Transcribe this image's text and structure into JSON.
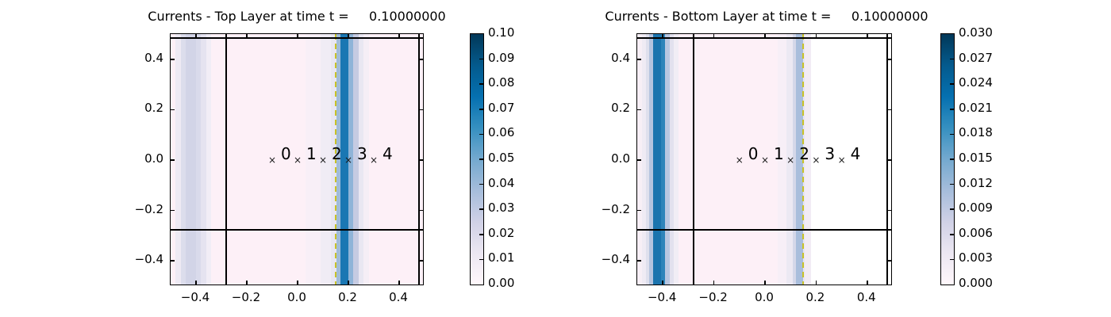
{
  "figure": {
    "background": "#ffffff"
  },
  "chart_data": [
    {
      "type": "heatmap",
      "title": "Currents - Top Layer at time t =     0.10000000",
      "xlabel": "",
      "ylabel": "",
      "xlim": [
        -0.5,
        0.5
      ],
      "ylim": [
        -0.5,
        0.5
      ],
      "xtick_values": [
        -0.4,
        -0.2,
        0.0,
        0.2,
        0.4
      ],
      "xtick_labels": [
        "−0.4",
        "−0.2",
        "0.0",
        "0.2",
        "0.4"
      ],
      "ytick_values": [
        0.4,
        0.2,
        0.0,
        -0.2,
        -0.4
      ],
      "ytick_labels": [
        "0.4",
        "0.2",
        "0.0",
        "−0.2",
        "−0.4"
      ],
      "background_color": "#fdf0f7",
      "colormap": "PuBu",
      "bands": [
        {
          "x0": -0.5,
          "x1": -0.48,
          "color": "#fdf0f7"
        },
        {
          "x0": -0.48,
          "x1": -0.46,
          "color": "#eeeaf4"
        },
        {
          "x0": -0.46,
          "x1": -0.44,
          "color": "#dcddec"
        },
        {
          "x0": -0.44,
          "x1": -0.4,
          "color": "#d2d4e7"
        },
        {
          "x0": -0.4,
          "x1": -0.38,
          "color": "#d9daeb"
        },
        {
          "x0": -0.38,
          "x1": -0.36,
          "color": "#e5e3f0"
        },
        {
          "x0": -0.36,
          "x1": -0.34,
          "color": "#f1edf6"
        },
        {
          "x0": -0.34,
          "x1": 0.03,
          "color": "#fdf0f7"
        },
        {
          "x0": 0.03,
          "x1": 0.09,
          "color": "#f8eff7"
        },
        {
          "x0": 0.09,
          "x1": 0.13,
          "color": "#f0ecf5"
        },
        {
          "x0": 0.13,
          "x1": 0.153,
          "color": "#e8e6f1"
        },
        {
          "x0": 0.153,
          "x1": 0.169,
          "color": "#9fbcda"
        },
        {
          "x0": 0.169,
          "x1": 0.2,
          "color": "#1a77b3"
        },
        {
          "x0": 0.2,
          "x1": 0.219,
          "color": "#8fb4d8"
        },
        {
          "x0": 0.219,
          "x1": 0.24,
          "color": "#c6cbe2"
        },
        {
          "x0": 0.24,
          "x1": 0.26,
          "color": "#e9e7f2"
        },
        {
          "x0": 0.26,
          "x1": 0.28,
          "color": "#f5eef6"
        },
        {
          "x0": 0.28,
          "x1": 0.5,
          "color": "#fdf0f7"
        }
      ],
      "amr_grid_lines": {
        "vertical_x": [
          -0.28,
          0.4775
        ],
        "horizontal_y": [
          0.485,
          -0.2775
        ]
      },
      "dashed_line": {
        "x": 0.15,
        "color": "#c8c227"
      },
      "gauge_marker_glyph": "×",
      "gauges": [
        {
          "id": "0",
          "x": -0.1,
          "y": 0.0
        },
        {
          "id": "1",
          "x": 0.0,
          "y": 0.0
        },
        {
          "id": "2",
          "x": 0.1,
          "y": 0.0
        },
        {
          "id": "3",
          "x": 0.2,
          "y": 0.0
        },
        {
          "id": "4",
          "x": 0.3,
          "y": 0.0
        }
      ],
      "colorbar": {
        "min": 0.0,
        "max": 0.1,
        "tick_labels": [
          "0.10",
          "0.09",
          "0.08",
          "0.07",
          "0.06",
          "0.05",
          "0.04",
          "0.03",
          "0.02",
          "0.01",
          "0.00"
        ],
        "gradient_top_to_bottom": [
          "#023858",
          "#045a8d",
          "#0570b0",
          "#3690c0",
          "#74a9cf",
          "#a6bddb",
          "#d0d1e6",
          "#ece7f2",
          "#fff7fb"
        ]
      }
    },
    {
      "type": "heatmap",
      "title": "Currents - Bottom Layer at time t =     0.10000000",
      "xlabel": "",
      "ylabel": "",
      "xlim": [
        -0.5,
        0.5
      ],
      "ylim": [
        -0.5,
        0.5
      ],
      "xtick_values": [
        -0.4,
        -0.2,
        0.0,
        0.2,
        0.4
      ],
      "xtick_labels": [
        "−0.4",
        "−0.2",
        "0.0",
        "0.2",
        "0.4"
      ],
      "ytick_values": [
        0.4,
        0.2,
        0.0,
        -0.2,
        -0.4
      ],
      "ytick_labels": [
        "0.4",
        "0.2",
        "0.0",
        "−0.2",
        "−0.4"
      ],
      "background_color": "#fdf0f7",
      "colormap": "PuBu",
      "bands": [
        {
          "x0": -0.5,
          "x1": -0.48,
          "color": "#f7eff6"
        },
        {
          "x0": -0.48,
          "x1": -0.467,
          "color": "#efebf4"
        },
        {
          "x0": -0.467,
          "x1": -0.454,
          "color": "#dfe0ed"
        },
        {
          "x0": -0.454,
          "x1": -0.438,
          "color": "#b5c4df"
        },
        {
          "x0": -0.438,
          "x1": -0.408,
          "color": "#1b74ae"
        },
        {
          "x0": -0.408,
          "x1": -0.392,
          "color": "#2e84ba"
        },
        {
          "x0": -0.392,
          "x1": -0.373,
          "color": "#b9c7e1"
        },
        {
          "x0": -0.373,
          "x1": -0.358,
          "color": "#e2e1ee"
        },
        {
          "x0": -0.358,
          "x1": -0.34,
          "color": "#f1edf5"
        },
        {
          "x0": -0.34,
          "x1": 0.05,
          "color": "#fdf0f7"
        },
        {
          "x0": 0.05,
          "x1": 0.083,
          "color": "#f7eff7"
        },
        {
          "x0": 0.083,
          "x1": 0.11,
          "color": "#ece9f3"
        },
        {
          "x0": 0.11,
          "x1": 0.122,
          "color": "#d5d8e9"
        },
        {
          "x0": 0.122,
          "x1": 0.15,
          "color": "#a9bedc"
        },
        {
          "x0": 0.15,
          "x1": 0.156,
          "color": "#e8e6f1"
        },
        {
          "x0": 0.156,
          "x1": 0.18,
          "color": "#f2ecf5"
        },
        {
          "x0": 0.18,
          "x1": 0.5,
          "color": "#ffffff"
        }
      ],
      "amr_grid_lines": {
        "vertical_x": [
          -0.28,
          0.4775
        ],
        "horizontal_y": [
          0.485,
          -0.2775
        ]
      },
      "dashed_line": {
        "x": 0.15,
        "color": "#c8c227"
      },
      "gauge_marker_glyph": "×",
      "gauges": [
        {
          "id": "0",
          "x": -0.1,
          "y": 0.0
        },
        {
          "id": "1",
          "x": 0.0,
          "y": 0.0
        },
        {
          "id": "2",
          "x": 0.1,
          "y": 0.0
        },
        {
          "id": "3",
          "x": 0.2,
          "y": 0.0
        },
        {
          "id": "4",
          "x": 0.3,
          "y": 0.0
        }
      ],
      "colorbar": {
        "min": 0.0,
        "max": 0.03,
        "tick_labels": [
          "0.030",
          "0.027",
          "0.024",
          "0.021",
          "0.018",
          "0.015",
          "0.012",
          "0.009",
          "0.006",
          "0.003",
          "0.000"
        ],
        "gradient_top_to_bottom": [
          "#023858",
          "#045a8d",
          "#0570b0",
          "#3690c0",
          "#74a9cf",
          "#a6bddb",
          "#d0d1e6",
          "#ece7f2",
          "#fff7fb"
        ]
      }
    }
  ]
}
